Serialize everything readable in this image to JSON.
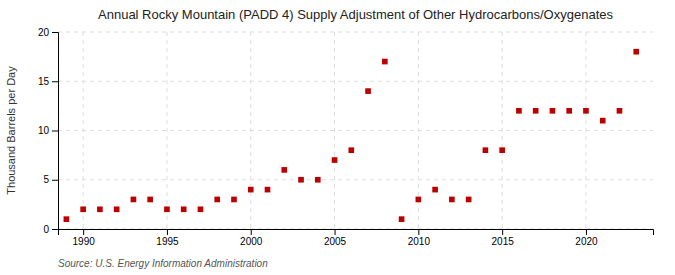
{
  "chart_data": {
    "type": "scatter",
    "title": "Annual Rocky Mountain (PADD 4) Supply Adjustment of Other Hydrocarbons/Oxygenates",
    "y_label": "Thousand Barrels per Day",
    "source": "Source: U.S. Energy Information Administration",
    "x": [
      1989,
      1990,
      1991,
      1992,
      1993,
      1994,
      1995,
      1996,
      1997,
      1998,
      1999,
      2000,
      2001,
      2002,
      2003,
      2004,
      2005,
      2006,
      2007,
      2008,
      2009,
      2010,
      2011,
      2012,
      2013,
      2014,
      2015,
      2016,
      2017,
      2018,
      2019,
      2020,
      2021,
      2022,
      2023
    ],
    "values": [
      1.0,
      2.0,
      2.0,
      2.0,
      3.0,
      3.0,
      2.0,
      2.0,
      2.0,
      3.0,
      3.0,
      4.0,
      4.0,
      6.0,
      5.0,
      5.0,
      7.0,
      8.0,
      14.0,
      17.0,
      1.0,
      3.0,
      4.0,
      3.0,
      3.0,
      8.0,
      8.0,
      12.0,
      12.0,
      12.0,
      12.0,
      12.0,
      11.0,
      12.0,
      18.0
    ],
    "color": "#bb0000",
    "marker": "square",
    "xlim": [
      1988.5,
      2024.0
    ],
    "xticks": [
      1990,
      1995,
      2000,
      2005,
      2010,
      2015,
      2020
    ],
    "ylim": [
      0,
      20
    ],
    "yticks": [
      0,
      5,
      10,
      15,
      20
    ],
    "grid": true
  }
}
